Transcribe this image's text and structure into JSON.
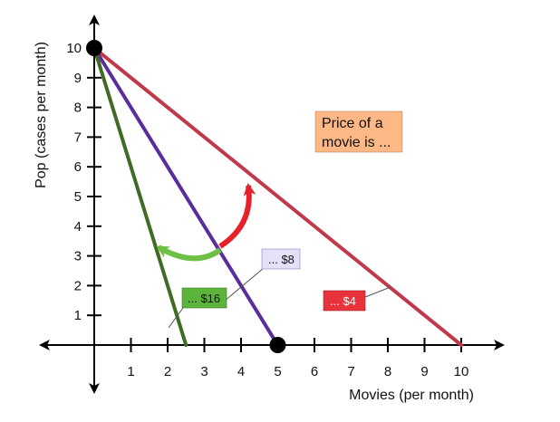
{
  "chart_data": {
    "type": "line",
    "title": "",
    "xlabel": "Movies (per month)",
    "ylabel": "Pop (cases per month)",
    "xlim": [
      0,
      10
    ],
    "ylim": [
      0,
      10
    ],
    "x_ticks": [
      1,
      2,
      3,
      4,
      5,
      6,
      7,
      8,
      9,
      10
    ],
    "y_ticks": [
      1,
      2,
      3,
      4,
      5,
      6,
      7,
      8,
      9,
      10
    ],
    "series": [
      {
        "name": "... $4",
        "points": [
          [
            0,
            10
          ],
          [
            10,
            0
          ]
        ],
        "color": "#c0394b",
        "label_bg": "#e8323c"
      },
      {
        "name": "... $8",
        "points": [
          [
            0,
            10
          ],
          [
            5,
            0
          ]
        ],
        "color": "#5a2d9c",
        "label_bg": "#e6e0f8"
      },
      {
        "name": "... $16",
        "points": [
          [
            0,
            10
          ],
          [
            2.5,
            0
          ]
        ],
        "color": "#3f6b24",
        "label_bg": "#5db43a"
      }
    ],
    "highlight_points": [
      [
        0,
        10
      ],
      [
        5,
        0
      ]
    ],
    "annotation": {
      "lines": [
        "Price of a",
        "movie is ..."
      ],
      "bg": "#fdb885"
    },
    "arrows": [
      {
        "from": "purple line",
        "to": "green line",
        "color": "#6dc044"
      },
      {
        "from": "purple line",
        "to": "red line",
        "color": "#e8202a"
      }
    ],
    "grid": false,
    "legend": "none"
  }
}
